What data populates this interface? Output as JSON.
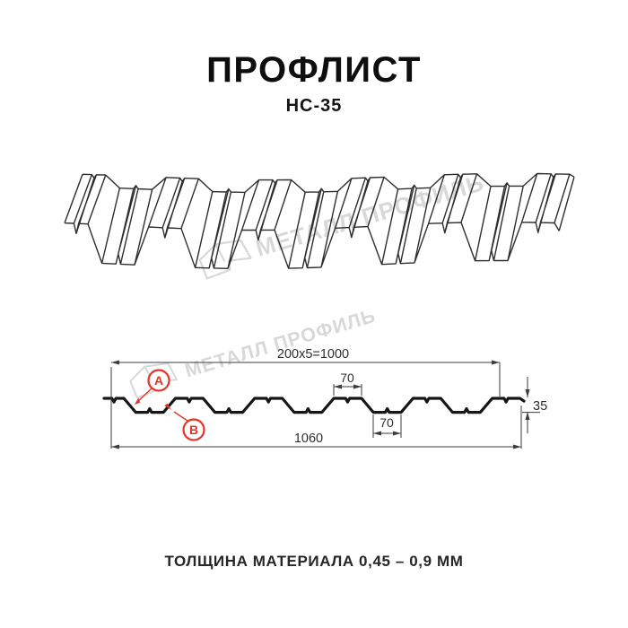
{
  "header": {
    "title": "ПРОФЛИСТ",
    "subtitle": "НС-35"
  },
  "footer": {
    "note": "ТОЛЩИНА МАТЕРИАЛА 0,45 – 0,9 ММ"
  },
  "watermark": {
    "text": "МЕТАЛЛ ПРОФИЛЬ",
    "color": "#d8d8d8"
  },
  "drawing": {
    "dimensions": {
      "working_width": "200x5=1000",
      "crest_flat_width": "70",
      "valley_flat_width": "70",
      "profile_height": "35",
      "overall_width": "1060"
    },
    "callouts": {
      "a": "А",
      "b": "В"
    },
    "colors": {
      "profile_line": "#161616",
      "wireframe_line": "#2e2e2e",
      "dimension_line": "#3d3d3d",
      "callout_red": "#e13527"
    }
  }
}
